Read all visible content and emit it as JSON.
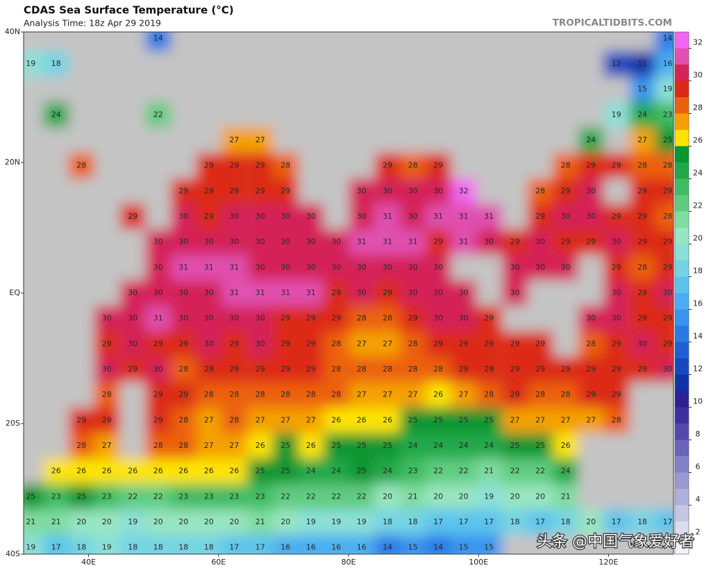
{
  "header": {
    "title": "CDAS Sea Surface Temperature (°C)",
    "subtitle": "Analysis Time: 18z Apr 29 2019",
    "source": "TROPICALTIDBITS.COM"
  },
  "map": {
    "lonlim": [
      30,
      130
    ],
    "latlim": [
      -40,
      40
    ],
    "lonticks": [
      {
        "value": 40,
        "label": "40E"
      },
      {
        "value": 60,
        "label": "60E"
      },
      {
        "value": 80,
        "label": "80E"
      },
      {
        "value": 100,
        "label": "100E"
      },
      {
        "value": 120,
        "label": "120E"
      }
    ],
    "latticks": [
      {
        "value": 40,
        "label": "40N"
      },
      {
        "value": 20,
        "label": "20N"
      },
      {
        "value": 0,
        "label": "EQ"
      },
      {
        "value": -20,
        "label": "20S"
      },
      {
        "value": -40,
        "label": "40S"
      }
    ],
    "land_color": "#c4c4c4",
    "labels": {
      "lons": [
        31.1,
        35.0,
        38.9,
        42.8,
        46.8,
        50.7,
        54.6,
        58.5,
        62.4,
        66.4,
        70.3,
        74.2,
        78.1,
        82.0,
        86.0,
        89.9,
        93.8,
        97.7,
        101.6,
        105.6,
        109.5,
        113.4,
        117.3,
        121.2,
        125.2,
        129.1
      ],
      "lats": [
        39,
        35.1,
        31.2,
        27.3,
        23.4,
        19.5,
        15.6,
        11.7,
        7.8,
        3.9,
        0,
        -3.9,
        -7.8,
        -11.7,
        -15.6,
        -19.5,
        -23.4,
        -27.3,
        -31.2,
        -35.1,
        -39
      ],
      "rows": [
        [
          null,
          null,
          null,
          null,
          null,
          14,
          null,
          null,
          null,
          null,
          null,
          null,
          null,
          null,
          null,
          null,
          null,
          null,
          null,
          null,
          null,
          null,
          null,
          null,
          null,
          14
        ],
        [
          19,
          18,
          null,
          null,
          null,
          null,
          null,
          null,
          null,
          null,
          null,
          null,
          null,
          null,
          null,
          null,
          null,
          null,
          null,
          null,
          null,
          null,
          null,
          12,
          11,
          16
        ],
        [
          null,
          null,
          null,
          null,
          null,
          null,
          null,
          null,
          null,
          null,
          null,
          null,
          null,
          null,
          null,
          null,
          null,
          null,
          null,
          null,
          null,
          null,
          null,
          null,
          15,
          19
        ],
        [
          null,
          24,
          null,
          null,
          null,
          22,
          null,
          null,
          null,
          null,
          null,
          null,
          null,
          null,
          null,
          null,
          null,
          null,
          null,
          null,
          null,
          null,
          null,
          19,
          24,
          23
        ],
        [
          null,
          null,
          null,
          null,
          null,
          null,
          null,
          null,
          27,
          27,
          null,
          null,
          null,
          null,
          null,
          null,
          null,
          null,
          null,
          null,
          null,
          null,
          24,
          null,
          27,
          25
        ],
        [
          null,
          null,
          28,
          null,
          null,
          null,
          null,
          29,
          29,
          29,
          28,
          null,
          null,
          null,
          29,
          28,
          29,
          null,
          null,
          null,
          null,
          28,
          29,
          29,
          28,
          28
        ],
        [
          null,
          null,
          null,
          null,
          null,
          null,
          29,
          29,
          29,
          29,
          29,
          null,
          null,
          30,
          30,
          30,
          30,
          32,
          null,
          null,
          28,
          29,
          30,
          null,
          29,
          29
        ],
        [
          null,
          null,
          null,
          null,
          29,
          null,
          30,
          29,
          30,
          30,
          30,
          30,
          null,
          30,
          31,
          30,
          31,
          31,
          31,
          null,
          29,
          30,
          30,
          29,
          29,
          28
        ],
        [
          null,
          null,
          null,
          null,
          null,
          30,
          30,
          30,
          30,
          30,
          30,
          30,
          30,
          31,
          31,
          31,
          29,
          31,
          30,
          29,
          30,
          29,
          29,
          30,
          29,
          29
        ],
        [
          null,
          null,
          null,
          null,
          null,
          30,
          31,
          31,
          31,
          30,
          30,
          30,
          30,
          30,
          30,
          30,
          30,
          null,
          null,
          30,
          30,
          30,
          null,
          29,
          28,
          29
        ],
        [
          null,
          null,
          null,
          null,
          30,
          30,
          30,
          30,
          31,
          31,
          31,
          31,
          29,
          30,
          29,
          30,
          30,
          30,
          null,
          30,
          null,
          null,
          null,
          30,
          29,
          30
        ],
        [
          null,
          null,
          null,
          30,
          30,
          31,
          30,
          30,
          30,
          30,
          29,
          29,
          29,
          28,
          28,
          29,
          30,
          30,
          29,
          null,
          null,
          null,
          30,
          30,
          29,
          29
        ],
        [
          null,
          null,
          null,
          29,
          30,
          29,
          29,
          30,
          29,
          30,
          29,
          29,
          28,
          27,
          27,
          28,
          29,
          29,
          29,
          29,
          29,
          null,
          28,
          29,
          30,
          29
        ],
        [
          null,
          null,
          null,
          30,
          29,
          30,
          28,
          29,
          29,
          29,
          29,
          29,
          28,
          28,
          28,
          28,
          28,
          29,
          29,
          29,
          29,
          29,
          29,
          29,
          29,
          30
        ],
        [
          null,
          null,
          null,
          28,
          null,
          29,
          29,
          28,
          28,
          28,
          28,
          28,
          28,
          27,
          27,
          27,
          26,
          27,
          28,
          29,
          28,
          28,
          29,
          29,
          null,
          null
        ],
        [
          null,
          null,
          29,
          29,
          null,
          29,
          28,
          27,
          28,
          27,
          27,
          27,
          26,
          26,
          26,
          25,
          25,
          25,
          25,
          27,
          27,
          27,
          27,
          28,
          null,
          null
        ],
        [
          null,
          null,
          28,
          27,
          null,
          28,
          28,
          27,
          27,
          26,
          25,
          26,
          25,
          25,
          25,
          24,
          24,
          24,
          24,
          25,
          25,
          26,
          null,
          null,
          null,
          null
        ],
        [
          null,
          26,
          26,
          26,
          26,
          26,
          26,
          26,
          26,
          25,
          25,
          24,
          24,
          25,
          24,
          23,
          22,
          22,
          21,
          22,
          22,
          24,
          null,
          null,
          null,
          null
        ],
        [
          25,
          23,
          25,
          23,
          22,
          22,
          23,
          23,
          23,
          23,
          22,
          22,
          22,
          22,
          20,
          21,
          20,
          20,
          19,
          20,
          20,
          21,
          null,
          null,
          null,
          null
        ],
        [
          21,
          21,
          20,
          20,
          19,
          20,
          20,
          20,
          20,
          21,
          20,
          19,
          19,
          19,
          18,
          18,
          17,
          17,
          17,
          18,
          17,
          18,
          20,
          17,
          18,
          17
        ],
        [
          19,
          17,
          18,
          19,
          18,
          18,
          18,
          18,
          17,
          17,
          16,
          16,
          16,
          16,
          14,
          15,
          14,
          15,
          15,
          null,
          null,
          null,
          null,
          null,
          null,
          null
        ]
      ]
    }
  },
  "colorbar": {
    "lim": [
      1,
      33
    ],
    "ticks": [
      2,
      4,
      6,
      8,
      10,
      12,
      14,
      16,
      18,
      20,
      22,
      24,
      26,
      28,
      30,
      32
    ],
    "colors": [
      "#f2f2fa",
      "#dcdcef",
      "#c6c6e4",
      "#b0b0da",
      "#9a9ad0",
      "#8282c6",
      "#6a64ba",
      "#5448ac",
      "#40309e",
      "#2a2292",
      "#1232a8",
      "#1648c0",
      "#1e60d4",
      "#2a7ae6",
      "#3894ee",
      "#4aaef0",
      "#5cc4ec",
      "#74d4e4",
      "#8ce0d8",
      "#98e6c0",
      "#80dca0",
      "#60cc80",
      "#40bc62",
      "#22a848",
      "#0a9632",
      "#fde400",
      "#f5a000",
      "#ec6010",
      "#dc2a14",
      "#d42458",
      "#e050b0",
      "#f266f0"
    ]
  },
  "watermark": "头条 @中国气象爱好者"
}
